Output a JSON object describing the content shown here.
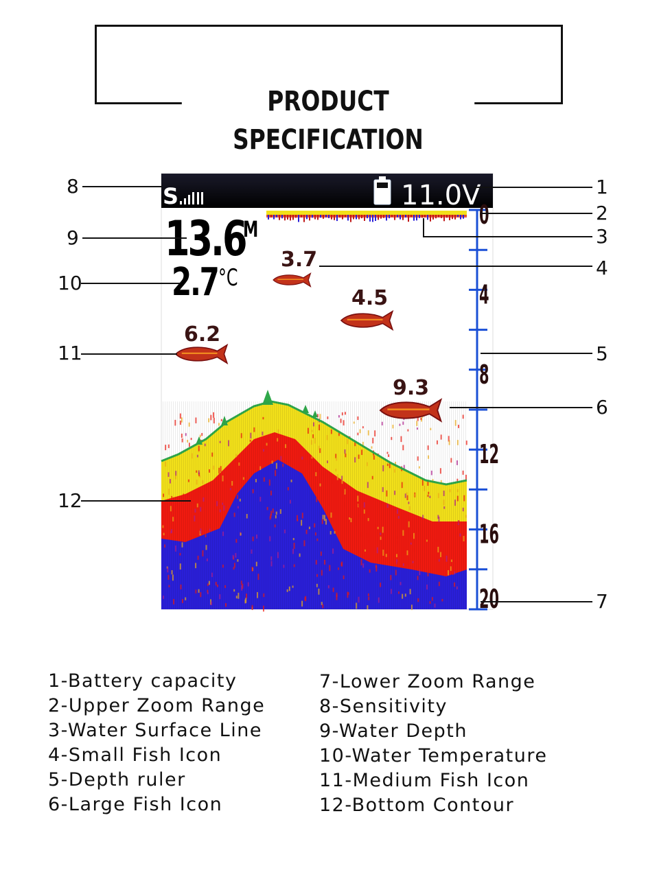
{
  "title": "PRODUCT SPECIFICATION",
  "screen": {
    "sensitivity_label": "S",
    "voltage": "11.0V",
    "depth_value": "13.6",
    "depth_unit": "M",
    "temp_value": "2.7",
    "temp_unit": "°C",
    "fish": [
      {
        "label": "3.7",
        "size": "small"
      },
      {
        "label": "4.5",
        "size": "medium"
      },
      {
        "label": "6.2",
        "size": "medium"
      },
      {
        "label": "9.3",
        "size": "large"
      }
    ],
    "ruler_labels": [
      "0",
      "4",
      "8",
      "12",
      "16",
      "20"
    ],
    "colors": {
      "ruler": "#1a4fd6",
      "yellow": "#f2e01a",
      "red": "#f01a10",
      "blue": "#2a1fd8",
      "green": "#2fa84a"
    }
  },
  "callouts": [
    "1",
    "2",
    "3",
    "4",
    "5",
    "6",
    "7",
    "8",
    "9",
    "10",
    "11",
    "12"
  ],
  "legend": {
    "left": [
      "1-Battery capacity",
      "2-Upper Zoom Range",
      "3-Water Surface Line",
      "4-Small Fish Icon",
      "5-Depth ruler",
      "6-Large Fish Icon"
    ],
    "right": [
      "7-Lower Zoom Range",
      "8-Sensitivity",
      "9-Water Depth",
      "10-Water Temperature",
      "11-Medium Fish Icon",
      "12-Bottom Contour"
    ]
  }
}
